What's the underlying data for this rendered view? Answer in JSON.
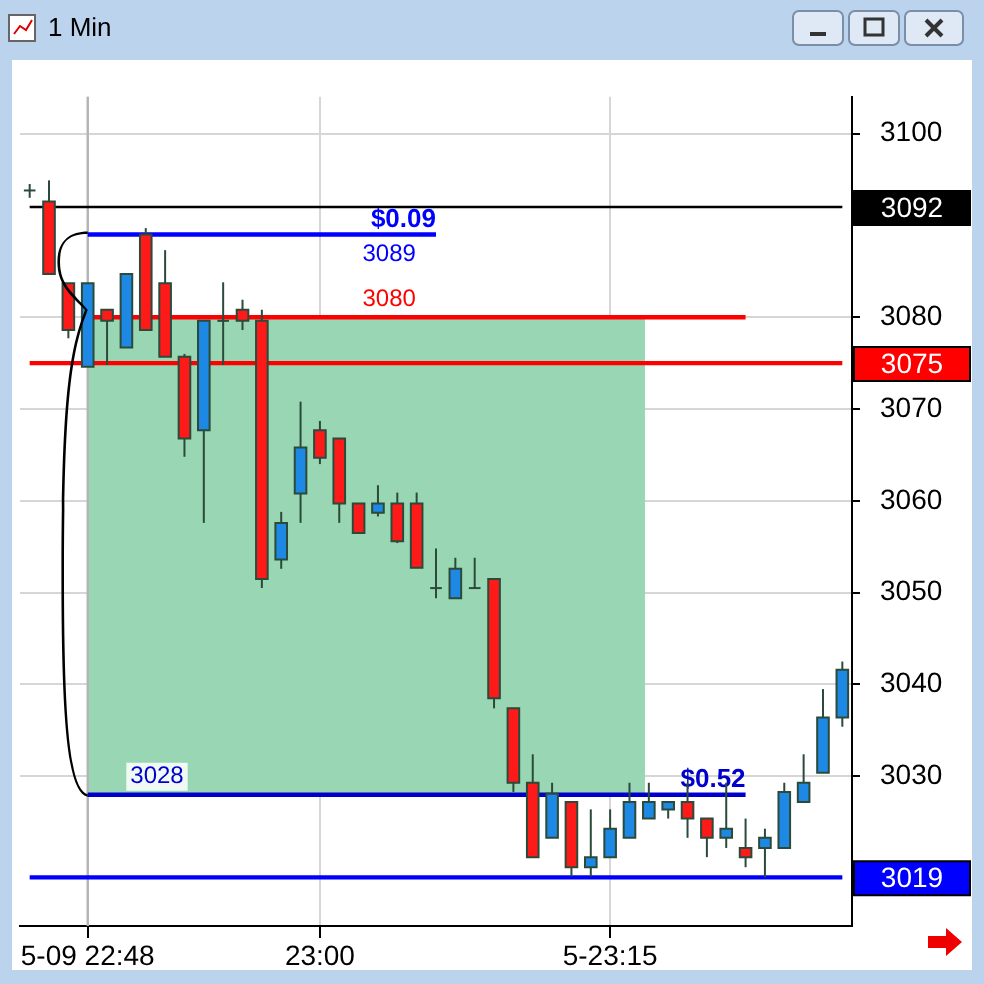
{
  "chart_data": {
    "type": "candlestick",
    "title": "1 Min",
    "categories": [
      null,
      null,
      null,
      "5-09 22:48",
      null,
      null,
      null,
      null,
      null,
      null,
      null,
      null,
      null,
      null,
      null,
      "23:00",
      null,
      null,
      null,
      null,
      null,
      null,
      null,
      null,
      null,
      null,
      null,
      null,
      null,
      null,
      "5-23:15",
      null,
      null,
      null,
      null,
      null,
      null,
      null,
      null,
      null,
      null,
      null,
      null
    ],
    "ohlc": [
      [
        3093.8,
        3094.5,
        3093,
        3093.8
      ],
      [
        3092.6,
        3094.9,
        3084.7,
        3084.7
      ],
      [
        3083.7,
        3083.7,
        3077.7,
        3078.6
      ],
      [
        3074.6,
        3083.7,
        3074.6,
        3083.7
      ],
      [
        3080.8,
        3080.8,
        3074.8,
        3079.6
      ],
      [
        3076.7,
        3084.7,
        3076.7,
        3084.7
      ],
      [
        3089,
        3089.7,
        3078.6,
        3078.6
      ],
      [
        3083.7,
        3087.3,
        3075.7,
        3075.7
      ],
      [
        3075.7,
        3076,
        3064.8,
        3066.8
      ],
      [
        3067.7,
        3079.6,
        3057.6,
        3079.6
      ],
      [
        3079.6,
        3083.8,
        3074.8,
        3079.6
      ],
      [
        3080.8,
        3081.9,
        3078.6,
        3079.6
      ],
      [
        3079.6,
        3080.8,
        3050.5,
        3051.5
      ],
      [
        3053.6,
        3058.8,
        3052.6,
        3057.6
      ],
      [
        3060.8,
        3070.8,
        3057.6,
        3065.8
      ],
      [
        3067.7,
        3068.7,
        3064,
        3064.7
      ],
      [
        3066.8,
        3066.8,
        3057.6,
        3059.7
      ],
      [
        3059.7,
        3059.7,
        3056.5,
        3056.5
      ],
      [
        3058.7,
        3061.7,
        3058.3,
        3059.7
      ],
      [
        3059.7,
        3060.9,
        3055.4,
        3055.6
      ],
      [
        3059.7,
        3060.9,
        3052.7,
        3052.7
      ],
      [
        3050.5,
        3054.8,
        3049.4,
        3050.5
      ],
      [
        3049.4,
        3053.8,
        3049.4,
        3052.6
      ],
      [
        3050.5,
        3053.8,
        3050.5,
        3050.5
      ],
      [
        3051.5,
        3051.5,
        3037.4,
        3038.5
      ],
      [
        3037.4,
        3037.4,
        3028.3,
        3029.3
      ],
      [
        3029.3,
        3032.4,
        3021.2,
        3021.2
      ],
      [
        3023.3,
        3029.3,
        3023.3,
        3028.1
      ],
      [
        3027.2,
        3027.2,
        3019.1,
        3020.1
      ],
      [
        3020.1,
        3026.4,
        3019.1,
        3021.2
      ],
      [
        3021.2,
        3026.4,
        3021.2,
        3024.3
      ],
      [
        3023.3,
        3029.3,
        3023.3,
        3027.2
      ],
      [
        3025.4,
        3029.3,
        3025.4,
        3027.2
      ],
      [
        3026.4,
        3027.2,
        3025.4,
        3027.2
      ],
      [
        3027.2,
        3029.3,
        3023.3,
        3025.4
      ],
      [
        3025.4,
        3025.4,
        3021.2,
        3023.3
      ],
      [
        3023.3,
        3029.3,
        3022.2,
        3024.3
      ],
      [
        3022.2,
        3025.4,
        3020.1,
        3021.2
      ],
      [
        3022.2,
        3024.3,
        3019,
        3023.3
      ],
      [
        3022.2,
        3029.3,
        3022.2,
        3028.3
      ],
      [
        3027.2,
        3032.4,
        3027.2,
        3029.3
      ],
      [
        3030.4,
        3039.5,
        3030.4,
        3036.4
      ],
      [
        3036.4,
        3042.5,
        3035.4,
        3041.6
      ]
    ],
    "series": [
      {
        "type": "line",
        "color": "#000000",
        "values": [
          3092,
          3092,
          3092,
          3092,
          3092,
          3092,
          3092,
          3092,
          3092,
          3092,
          3092,
          3092,
          3092,
          3092,
          3092,
          3092,
          3092,
          3092,
          3092,
          3092,
          3092,
          3092,
          3092,
          3092,
          3092,
          3092,
          3092,
          3092,
          3092,
          3092,
          3092,
          3092,
          3092,
          3092,
          3092,
          3092,
          3092,
          3092,
          3092,
          3092,
          3092,
          3092,
          3092
        ]
      },
      {
        "type": "line",
        "color": "#0000ff",
        "values": [
          null,
          null,
          null,
          3089,
          3089,
          3089,
          3089,
          3089,
          3089,
          3089,
          3089,
          3089,
          3089,
          3089,
          3089,
          3089,
          3089,
          3089,
          3089,
          3089,
          3089,
          3089,
          null,
          null,
          null,
          null,
          null,
          null,
          null,
          null,
          null,
          null,
          null,
          null,
          null,
          null,
          null,
          null,
          null,
          null,
          null,
          null,
          null
        ]
      },
      {
        "type": "line",
        "color": "#ff0000",
        "values": [
          null,
          null,
          null,
          3080,
          3080,
          3080,
          3080,
          3080,
          3080,
          3080,
          3080,
          3080,
          3080,
          3080,
          3080,
          3080,
          3080,
          3080,
          3080,
          3080,
          3080,
          3080,
          3080,
          3080,
          3080,
          3080,
          3080,
          3080,
          3080,
          3080,
          3080,
          3080,
          3080,
          3080,
          3080,
          3080,
          3080,
          3080,
          null,
          null,
          null,
          null,
          null
        ]
      },
      {
        "type": "line",
        "color": "#ff0000",
        "values": [
          3075,
          3075,
          3075,
          3075,
          3075,
          3075,
          3075,
          3075,
          3075,
          3075,
          3075,
          3075,
          3075,
          3075,
          3075,
          3075,
          3075,
          3075,
          3075,
          3075,
          3075,
          3075,
          3075,
          3075,
          3075,
          3075,
          3075,
          3075,
          3075,
          3075,
          3075,
          3075,
          3075,
          3075,
          3075,
          3075,
          3075,
          3075,
          3075,
          3075,
          3075,
          3075,
          3075
        ]
      },
      {
        "type": "line",
        "color": "#0000cc",
        "values": [
          null,
          null,
          null,
          3028,
          3028,
          3028,
          3028,
          3028,
          3028,
          3028,
          3028,
          3028,
          3028,
          3028,
          3028,
          3028,
          3028,
          3028,
          3028,
          3028,
          3028,
          3028,
          3028,
          3028,
          3028,
          3028,
          3028,
          3028,
          3028,
          3028,
          3028,
          3028,
          3028,
          3028,
          3028,
          3028,
          3028,
          3028,
          null,
          null,
          null,
          null,
          null
        ]
      },
      {
        "type": "line",
        "color": "#0000ff",
        "values": [
          3019,
          3019,
          3019,
          3019,
          3019,
          3019,
          3019,
          3019,
          3019,
          3019,
          3019,
          3019,
          3019,
          3019,
          3019,
          3019,
          3019,
          3019,
          3019,
          3019,
          3019,
          3019,
          3019,
          3019,
          3019,
          3019,
          3019,
          3019,
          3019,
          3019,
          3019,
          3019,
          3019,
          3019,
          3019,
          3019,
          3019,
          3019,
          3019,
          3019,
          3019,
          3019,
          3019
        ]
      }
    ],
    "bands": [
      {
        "axis": "y",
        "from": 3028,
        "to": 3080,
        "color": "#99d6b3"
      }
    ],
    "ref_lines": [
      {
        "axis": "x",
        "value": "5-09 22:48",
        "color": "#b4b4b4"
      }
    ],
    "annotations": [
      {
        "text": "$0.09",
        "y": 3089
      },
      {
        "text": "3089",
        "x": "23:00",
        "y": 3089
      },
      {
        "text": "3080",
        "x": "23:00",
        "y": 3080
      },
      {
        "text": "3028",
        "x": "5-09 22:48",
        "y": 3028
      },
      {
        "text": "$0.52",
        "y": 3028
      }
    ],
    "ylim": [
      3013.7,
      3104
    ],
    "yticks": [
      {
        "value": 3019,
        "label": "3019"
      },
      3030,
      3040,
      3050,
      3060,
      3070,
      {
        "value": 3075,
        "label": "3075"
      },
      3080,
      {
        "value": 3090,
        "label": null
      },
      {
        "value": 3092,
        "label": "3092"
      },
      3100
    ],
    "grid": true
  }
}
